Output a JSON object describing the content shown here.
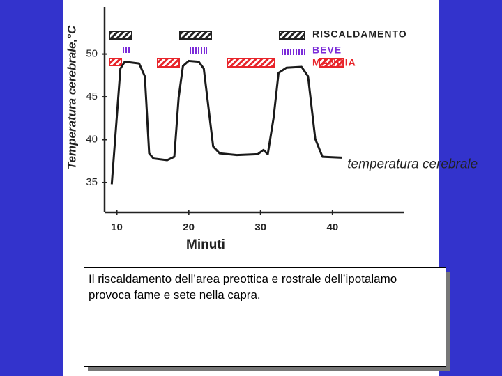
{
  "chart_data": {
    "type": "line",
    "ylabel": "Temperatura cerebrale,°C",
    "xlabel": "Minuti",
    "x": [
      9.3,
      10.5,
      11.1,
      13.1,
      13.9,
      14.5,
      15.1,
      17.0,
      18.0,
      18.6,
      19.2,
      20.0,
      21.4,
      22.1,
      23.4,
      24.3,
      26.7,
      29.6,
      30.4,
      31.0,
      31.8,
      32.5,
      33.6,
      35.7,
      36.6,
      37.6,
      38.6,
      41.3
    ],
    "values": [
      34.8,
      48.3,
      49.1,
      48.9,
      47.4,
      38.4,
      37.8,
      37.6,
      38.0,
      44.9,
      48.6,
      49.2,
      49.1,
      48.3,
      39.2,
      38.4,
      38.2,
      38.3,
      38.8,
      38.3,
      42.5,
      47.8,
      48.4,
      48.5,
      47.4,
      40.1,
      38.0,
      37.9
    ],
    "color": "#1a1a1a",
    "line_label": "temperatura cerebrale",
    "xlim": [
      8.3,
      50
    ],
    "ylim": [
      31.5,
      55.5
    ],
    "xticks": [
      10,
      20,
      30,
      40
    ],
    "yticks": [
      35,
      40,
      45,
      50
    ],
    "events": [
      {
        "name": "RISCALDAMENTO",
        "color": "#222222"
      },
      {
        "name": "BEVE",
        "color": "#7a2ad8"
      },
      {
        "name": "MANGIA",
        "color": "#e8242a"
      }
    ]
  },
  "caption": "Il riscaldamento dell’area preottica e rostrale dell’ipotalamo provoca fame e sete nella capra."
}
